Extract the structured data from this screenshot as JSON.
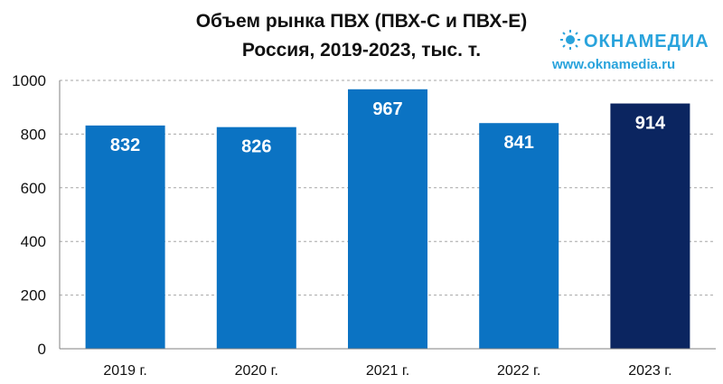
{
  "logo": {
    "name": "ОКНАМЕДИА",
    "url": "www.oknamedia.ru"
  },
  "colors": {
    "bar": "#0b73c3",
    "highlight": "#0b2560",
    "grid": "#a6a6a6",
    "axis": "#808080",
    "logo": "#29a3dc"
  },
  "chart_data": {
    "type": "bar",
    "title": [
      "Объем рынка ПВХ (ПВХ-С и ПВХ-Е)",
      "Россия, 2019-2023, тыс. т."
    ],
    "categories": [
      "2019 г.",
      "2020 г.",
      "2021 г.",
      "2022 г.",
      "2023 г."
    ],
    "values": [
      832,
      826,
      967,
      841,
      914
    ],
    "data_labels": [
      "832",
      "826",
      "967",
      "841",
      "914"
    ],
    "highlight_index": 4,
    "ylim": [
      0,
      1000
    ],
    "yticks": [
      0,
      200,
      400,
      600,
      800,
      1000
    ],
    "ytick_labels": [
      "0",
      "200",
      "400",
      "600",
      "800",
      "1000"
    ],
    "grid": true,
    "xlabel": "",
    "ylabel": ""
  }
}
